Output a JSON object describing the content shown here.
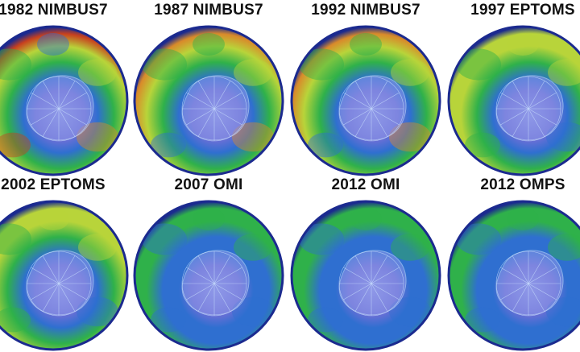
{
  "panels": [
    {
      "label": "1982 NIMBUS7",
      "palette": "high"
    },
    {
      "label": "1987 NIMBUS7",
      "palette": "mid"
    },
    {
      "label": "1992 NIMBUS7",
      "palette": "mid"
    },
    {
      "label": "1997 EPTOMS",
      "palette": "low"
    },
    {
      "label": "2002 EPTOMS",
      "palette": "low"
    },
    {
      "label": "2007 OMI",
      "palette": "lowest"
    },
    {
      "label": "2012 OMI",
      "palette": "lowest"
    },
    {
      "label": "2012 OMPS",
      "palette": "lowest"
    }
  ],
  "colors": {
    "rim": "#1b2a8f",
    "outer": "#2f6fd0",
    "green": "#2fb14a",
    "lime": "#b8d43a",
    "orange": "#d98a2a",
    "red": "#c8401e",
    "hole": "#6a6fd6",
    "hole_core": "#8e98e8",
    "continent_line": "#cfe6ff"
  }
}
